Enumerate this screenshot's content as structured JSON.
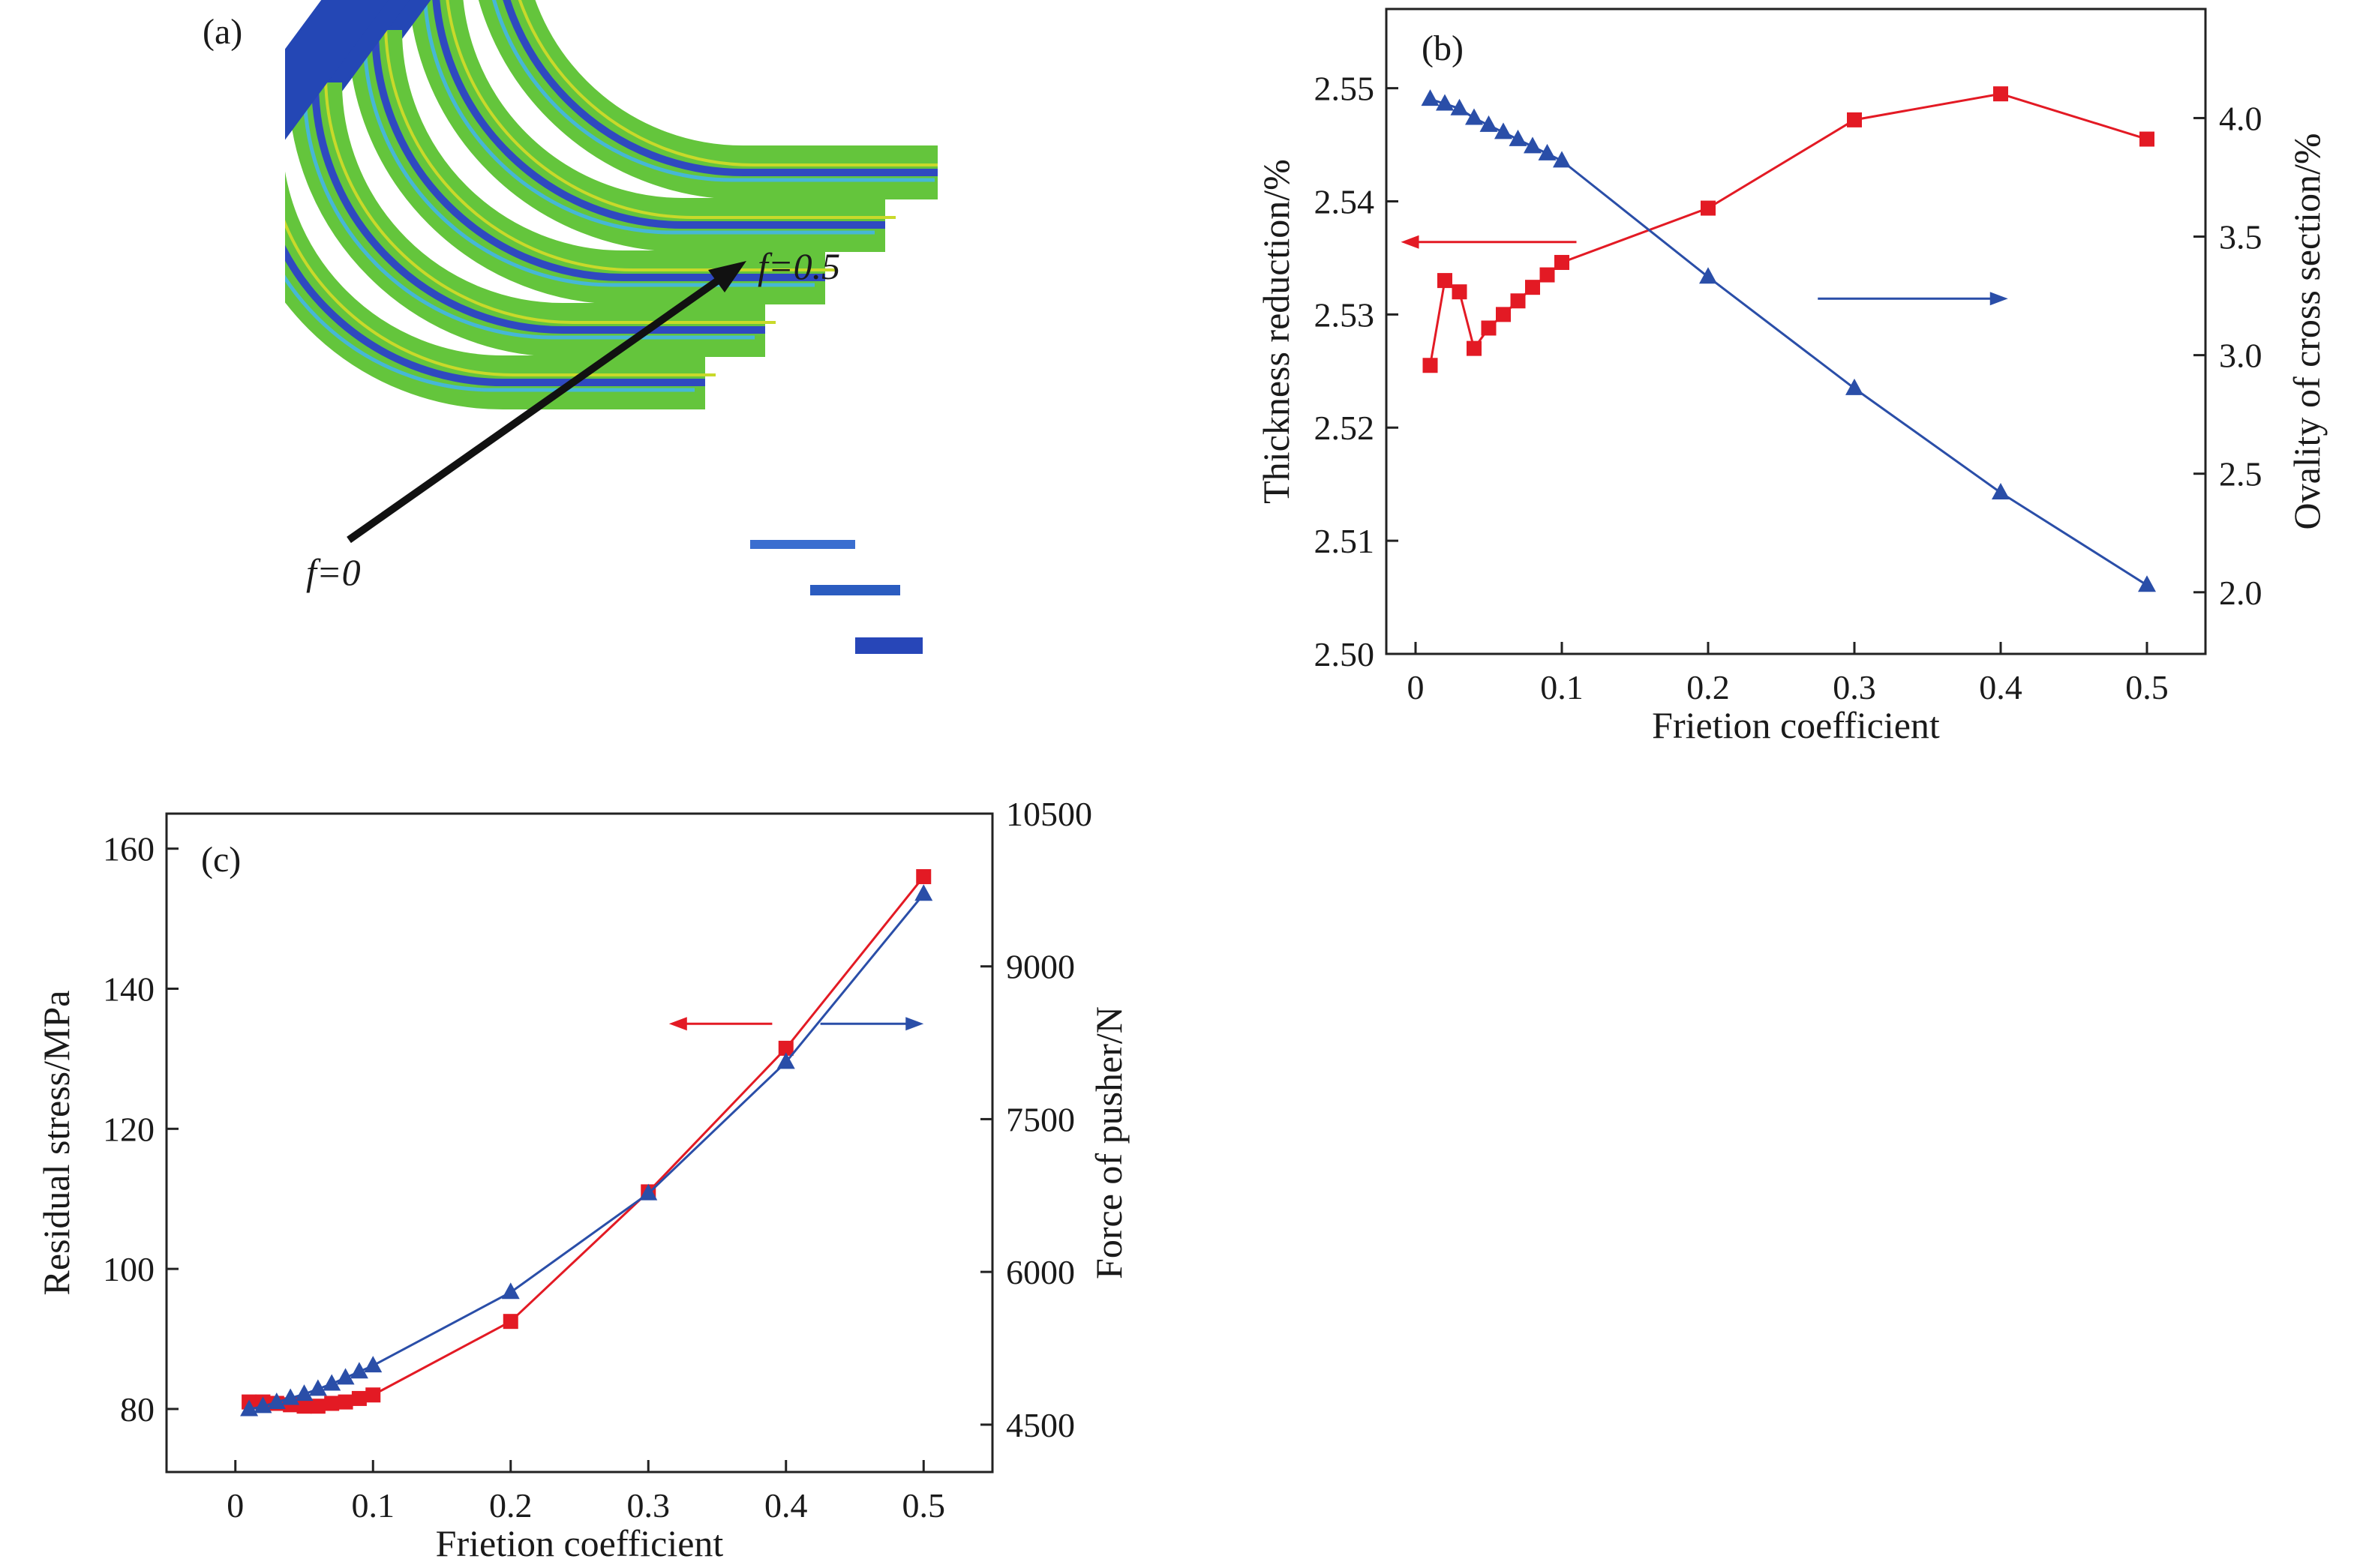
{
  "panel_a": {
    "label": "(a)",
    "annot_start": "f=0",
    "annot_end": "f=0.5",
    "colors": {
      "tube_green": "#5fc23a",
      "tube_blue": "#2040b8",
      "tube_cyan": "#3fb8d8",
      "arrow": "#111111"
    }
  },
  "chart_data": [
    {
      "panel": "(b)",
      "type": "line",
      "xlabel": "Frietion coefficient",
      "ylabel_left": "Thickness reduction/%",
      "ylabel_right": "Ovality of cross section/%",
      "xlim": [
        -0.02,
        0.54
      ],
      "ylim_left": [
        2.5,
        2.557
      ],
      "ylim_right": [
        1.74,
        4.46
      ],
      "x_ticks": [
        "0",
        "0.1",
        "0.2",
        "0.3",
        "0.4",
        "0.5"
      ],
      "y_ticks_left": [
        "2.50",
        "2.51",
        "2.52",
        "2.53",
        "2.54",
        "2.55"
      ],
      "y_ticks_right": [
        "2.0",
        "2.5",
        "3.0",
        "3.5",
        "4.0"
      ],
      "series": [
        {
          "axis": "left",
          "color": "#e31a24",
          "marker": "square",
          "x": [
            0.01,
            0.02,
            0.03,
            0.04,
            0.05,
            0.06,
            0.07,
            0.08,
            0.09,
            0.1,
            0.2,
            0.3,
            0.4,
            0.5
          ],
          "y": [
            2.5255,
            2.533,
            2.532,
            2.527,
            2.5288,
            2.53,
            2.5312,
            2.5324,
            2.5335,
            2.5346,
            2.5394,
            2.5472,
            2.5495,
            2.5455
          ]
        },
        {
          "axis": "right",
          "color": "#2a4ea8",
          "marker": "triangle",
          "x": [
            0.01,
            0.02,
            0.03,
            0.04,
            0.05,
            0.06,
            0.07,
            0.08,
            0.09,
            0.1,
            0.2,
            0.3,
            0.4,
            0.5
          ],
          "y": [
            4.08,
            4.06,
            4.04,
            4.0,
            3.97,
            3.94,
            3.91,
            3.88,
            3.85,
            3.82,
            3.33,
            2.86,
            2.42,
            2.03
          ]
        }
      ],
      "arrows": [
        {
          "direction": "left",
          "color": "#e31a24",
          "x_from": 0.11,
          "x_to": -0.01,
          "y_left": 2.5364
        },
        {
          "direction": "right",
          "color": "#2a4ea8",
          "x_from": 0.275,
          "x_to": 0.405,
          "y_left": 2.5314
        }
      ]
    },
    {
      "panel": "(c)",
      "type": "line",
      "xlabel": "Frietion coefficient",
      "ylabel_left": "Residual stress/MPa",
      "ylabel_right": "Force of pusher/N",
      "xlim": [
        -0.05,
        0.55
      ],
      "ylim_left": [
        71,
        165
      ],
      "ylim_right": [
        4035,
        10500
      ],
      "x_ticks": [
        "0",
        "0.1",
        "0.2",
        "0.3",
        "0.4",
        "0.5"
      ],
      "y_ticks_left": [
        "80",
        "100",
        "120",
        "140",
        "160"
      ],
      "y_ticks_right": [
        "4500",
        "6000",
        "7500",
        "9000",
        "10500"
      ],
      "series": [
        {
          "axis": "left",
          "color": "#e31a24",
          "marker": "square",
          "x": [
            0.01,
            0.02,
            0.03,
            0.04,
            0.05,
            0.06,
            0.07,
            0.08,
            0.09,
            0.1,
            0.2,
            0.3,
            0.4,
            0.5
          ],
          "y": [
            81,
            81,
            80.8,
            80.6,
            80.4,
            80.4,
            80.8,
            81,
            81.5,
            82,
            92.5,
            111,
            131.5,
            156
          ]
        },
        {
          "axis": "right",
          "color": "#2a4ea8",
          "marker": "triangle",
          "x": [
            0.01,
            0.02,
            0.03,
            0.04,
            0.05,
            0.06,
            0.07,
            0.08,
            0.09,
            0.1,
            0.2,
            0.3,
            0.4,
            0.5
          ],
          "y": [
            4650,
            4680,
            4720,
            4760,
            4800,
            4850,
            4900,
            4960,
            5020,
            5080,
            5800,
            6770,
            8060,
            9710
          ]
        }
      ],
      "arrows": [
        {
          "direction": "left",
          "color": "#e31a24",
          "x_from": 0.39,
          "x_to": 0.315,
          "y_left": 135
        },
        {
          "direction": "right",
          "color": "#2a4ea8",
          "x_from": 0.425,
          "x_to": 0.5,
          "y_left": 135
        }
      ]
    }
  ]
}
